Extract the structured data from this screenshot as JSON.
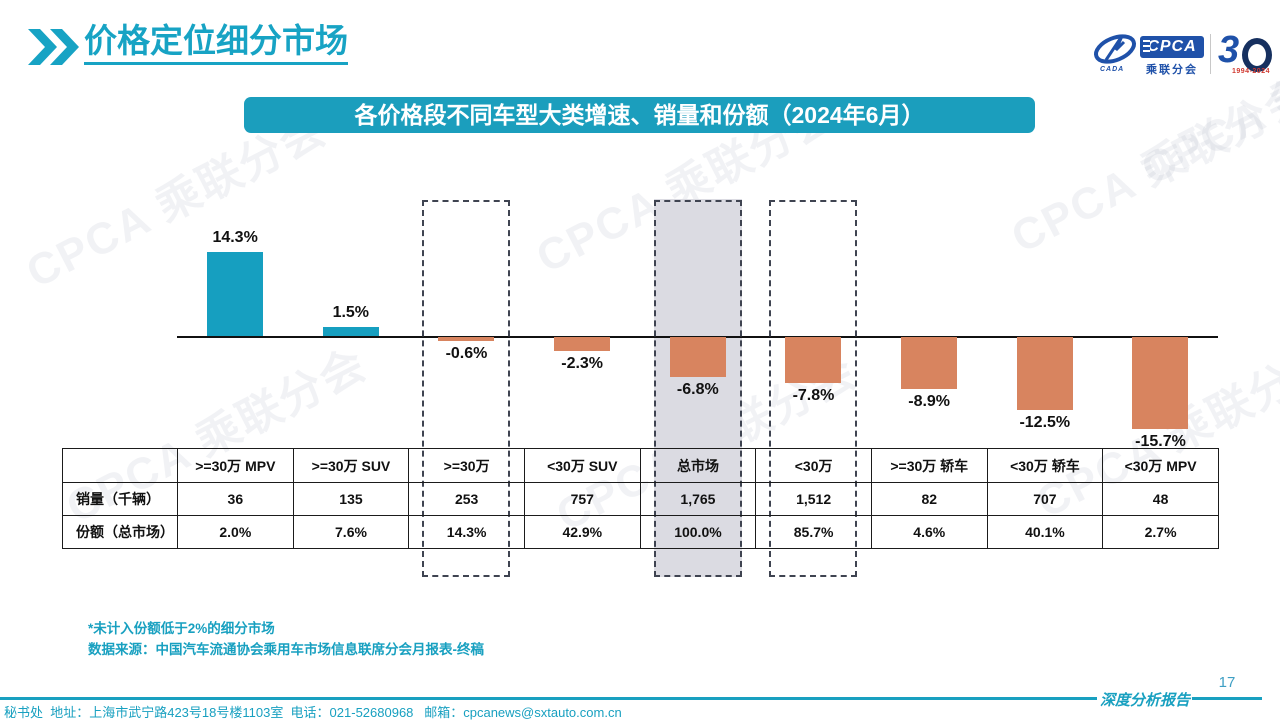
{
  "page": {
    "title": "价格定位细分市场",
    "page_number": "17",
    "report_label": "深度分析报告",
    "footer_contact": "秘书处  地址：上海市武宁路423号18号楼1103室  电话：021-52680968   邮箱：cpcanews@sxtauto.com.cn"
  },
  "logo": {
    "cpca_text": "CPCA",
    "cpca_sub": "乘联分会",
    "cada_text": "CADA",
    "anniversary_3": "3",
    "anniversary_years": "1994-2024"
  },
  "banner": {
    "title": "各价格段不同车型大类增速、销量和份额（2024年6月）"
  },
  "notes": {
    "line1": "*未计入份额低于2%的细分市场",
    "line2": "数据来源：中国汽车流通协会乘用车市场信息联席分会月报表-终稿"
  },
  "colors": {
    "positive_bar": "#169FC0",
    "negative_bar": "#D8845F",
    "gray_highlight": "#DBDBE2",
    "banner_bg": "#1B9EBD",
    "accent_teal": "#18A0C0"
  },
  "watermark": {
    "text": "CPCA 乘联分会"
  },
  "chart_data": {
    "type": "bar",
    "title": "各价格段不同车型大类增速、销量和份额（2024年6月）",
    "categories": [
      ">=30万 MPV",
      ">=30万 SUV",
      ">=30万",
      "<30万 SUV",
      "总市场",
      "<30万",
      ">=30万 轿车",
      "<30万 轿车",
      "<30万 MPV"
    ],
    "series": [
      {
        "name": "增速",
        "unit": "%",
        "values": [
          14.3,
          1.5,
          -0.6,
          -2.3,
          -6.8,
          -7.8,
          -8.9,
          -12.5,
          -15.7
        ]
      },
      {
        "name": "销量（千辆）",
        "values": [
          36,
          135,
          253,
          757,
          1765,
          1512,
          82,
          707,
          48
        ]
      },
      {
        "name": "份额（总市场）",
        "unit": "%",
        "values": [
          2.0,
          7.6,
          14.3,
          42.9,
          100.0,
          85.7,
          4.6,
          40.1,
          2.7
        ]
      }
    ],
    "bar_labels": [
      "14.3%",
      "1.5%",
      "-0.6%",
      "-2.3%",
      "-6.8%",
      "-7.8%",
      "-8.9%",
      "-12.5%",
      "-15.7%"
    ],
    "highlighted_columns": [
      {
        "index": 2,
        "category": ">=30万",
        "style": "dashed"
      },
      {
        "index": 4,
        "category": "总市场",
        "style": "dashed-gray"
      },
      {
        "index": 5,
        "category": "<30万",
        "style": "dashed"
      }
    ],
    "ylim": [
      -18,
      16
    ],
    "grid": false,
    "legend": null,
    "xlabel": "",
    "ylabel": ""
  },
  "table": {
    "row_labels": [
      "销量（千辆）",
      "份额（总市场）"
    ],
    "columns": [
      ">=30万 MPV",
      ">=30万 SUV",
      ">=30万",
      "<30万 SUV",
      "总市场",
      "<30万",
      ">=30万 轿车",
      "<30万 轿车",
      "<30万 MPV"
    ],
    "rows": [
      [
        "36",
        "135",
        "253",
        "757",
        "1,765",
        "1,512",
        "82",
        "707",
        "48"
      ],
      [
        "2.0%",
        "7.6%",
        "14.3%",
        "42.9%",
        "100.0%",
        "85.7%",
        "4.6%",
        "40.1%",
        "2.7%"
      ]
    ]
  }
}
